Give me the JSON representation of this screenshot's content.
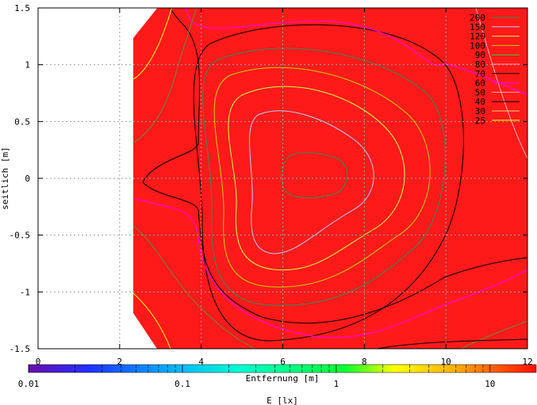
{
  "chart_data": {
    "type": "heatmap",
    "title": "",
    "xlabel": "Entfernung [m]",
    "ylabel": "seitlich [m]",
    "xlim": [
      0,
      12
    ],
    "ylim": [
      -1.5,
      1.5
    ],
    "x_ticks": [
      "0",
      "2",
      "4",
      "6",
      "8",
      "10",
      "12"
    ],
    "y_ticks": [
      "1.5",
      "1",
      "0.5",
      "0",
      "-0.5",
      "-1",
      "-1.5"
    ],
    "grid": true,
    "fill_color": "#ff1a1a",
    "colorbar": {
      "title": "E [lx]",
      "scale": "log",
      "range": [
        0.01,
        10
      ],
      "tick_labels": [
        "0.01",
        "0.1",
        "1",
        "10"
      ]
    },
    "contours": [
      {
        "level": "200",
        "color": "#2e8b57"
      },
      {
        "level": "150",
        "color": "#b0d0ff"
      },
      {
        "level": "120",
        "color": "#c8ff4a"
      },
      {
        "level": "100",
        "color": "#c0d000"
      },
      {
        "level": "90",
        "color": "#32cd32"
      },
      {
        "level": "80",
        "color": "#ffa0a0"
      },
      {
        "level": "70",
        "color": "#000000"
      },
      {
        "level": "60",
        "color": "#ff00ff"
      },
      {
        "level": "50",
        "color": "#ffb0b0"
      },
      {
        "level": "40",
        "color": "#000000"
      },
      {
        "level": "30",
        "color": "#ffd27f"
      },
      {
        "level": "25",
        "color": "#ffff00"
      }
    ]
  }
}
